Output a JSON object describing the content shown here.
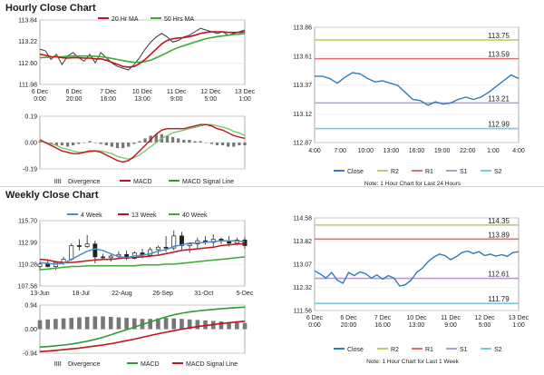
{
  "titles": {
    "hourly": "Hourly Close Chart",
    "weekly": "Weekly Close Chart"
  },
  "colors": {
    "price": "#3a3a3a",
    "ma_red": "#c0141c",
    "ma_green": "#3aaa35",
    "ma_blue": "#4a8fd0",
    "close": "#2e7bbf",
    "r2": "#b4d26e",
    "r1": "#e07070",
    "s1": "#b79bd0",
    "s2": "#7ec8e0",
    "divergence": "#777777",
    "macd_green": "#2e9a3a",
    "signal_green": "#7cc674"
  },
  "chart_data": [
    {
      "id": "hourly_price",
      "type": "line",
      "ylim": [
        111.98,
        113.84
      ],
      "yticks": [
        "113.84",
        "113.22",
        "112.60",
        "111.98"
      ],
      "xticks": [
        "6 Dec\n0:00",
        "6 Dec\n20:00",
        "7 Dec\n16:00",
        "10 Dec\n13:00",
        "11 Dec\n9:00",
        "12 Dec\n5:00",
        "13 Dec\n1:00"
      ],
      "legend": [
        "20 Hr MA",
        "50 Hrs MA"
      ],
      "series": [
        {
          "name": "Close",
          "values": [
            113.0,
            112.95,
            112.7,
            112.85,
            112.55,
            112.8,
            112.9,
            112.75,
            112.65,
            112.85,
            112.6,
            112.9,
            112.75,
            112.6,
            112.5,
            112.45,
            112.4,
            112.55,
            112.75,
            113.0,
            113.2,
            113.35,
            113.45,
            113.35,
            113.2,
            113.25,
            113.35,
            113.4,
            113.5,
            113.6,
            113.55,
            113.5,
            113.45,
            113.5,
            113.4,
            113.45,
            113.5,
            113.55
          ]
        },
        {
          "name": "20 Hr MA",
          "values": [
            112.85,
            112.82,
            112.78,
            112.78,
            112.75,
            112.74,
            112.75,
            112.75,
            112.74,
            112.74,
            112.72,
            112.72,
            112.68,
            112.62,
            112.56,
            112.5,
            112.48,
            112.5,
            112.58,
            112.7,
            112.85,
            113.0,
            113.15,
            113.25,
            113.3,
            113.32,
            113.33,
            113.36,
            113.4,
            113.45,
            113.48,
            113.5,
            113.5,
            113.5,
            113.48,
            113.48,
            113.48,
            113.5
          ]
        },
        {
          "name": "50 Hrs MA",
          "values": [
            112.75,
            112.76,
            112.77,
            112.78,
            112.78,
            112.79,
            112.8,
            112.8,
            112.8,
            112.8,
            112.79,
            112.78,
            112.76,
            112.73,
            112.7,
            112.67,
            112.64,
            112.62,
            112.62,
            112.64,
            112.68,
            112.75,
            112.82,
            112.9,
            112.98,
            113.05,
            113.1,
            113.15,
            113.2,
            113.25,
            113.3,
            113.33,
            113.36,
            113.38,
            113.4,
            113.42,
            113.43,
            113.45
          ]
        }
      ]
    },
    {
      "id": "hourly_macd",
      "type": "line",
      "ylim": [
        -0.19,
        0.19
      ],
      "yticks": [
        "0.19",
        "0.00",
        "-0.19"
      ],
      "legend": [
        "Divergence",
        "MACD",
        "MACD Signal Line"
      ],
      "series": [
        {
          "name": "Divergence",
          "values": [
            0.01,
            0.0,
            -0.01,
            -0.02,
            -0.02,
            -0.03,
            -0.02,
            -0.01,
            0.0,
            0.01,
            0.0,
            -0.01,
            -0.02,
            -0.03,
            -0.04,
            -0.04,
            -0.03,
            -0.01,
            0.01,
            0.03,
            0.05,
            0.06,
            0.06,
            0.05,
            0.04,
            0.03,
            0.02,
            0.02,
            0.01,
            0.01,
            0.0,
            -0.01,
            -0.02,
            -0.02,
            -0.03,
            -0.03,
            -0.02,
            -0.02
          ]
        },
        {
          "name": "MACD",
          "values": [
            0.02,
            0.0,
            -0.02,
            -0.04,
            -0.06,
            -0.07,
            -0.08,
            -0.08,
            -0.07,
            -0.06,
            -0.06,
            -0.07,
            -0.09,
            -0.11,
            -0.13,
            -0.14,
            -0.13,
            -0.1,
            -0.06,
            -0.02,
            0.02,
            0.06,
            0.09,
            0.1,
            0.1,
            0.1,
            0.1,
            0.11,
            0.12,
            0.13,
            0.13,
            0.12,
            0.1,
            0.09,
            0.07,
            0.05,
            0.04,
            0.03
          ]
        },
        {
          "name": "MACD Signal Line",
          "values": [
            0.01,
            0.0,
            -0.01,
            -0.02,
            -0.04,
            -0.05,
            -0.06,
            -0.07,
            -0.07,
            -0.07,
            -0.06,
            -0.06,
            -0.07,
            -0.08,
            -0.1,
            -0.11,
            -0.12,
            -0.11,
            -0.09,
            -0.06,
            -0.03,
            0.0,
            0.03,
            0.05,
            0.07,
            0.08,
            0.09,
            0.1,
            0.11,
            0.12,
            0.13,
            0.13,
            0.12,
            0.11,
            0.1,
            0.08,
            0.07,
            0.05
          ]
        }
      ]
    },
    {
      "id": "hourly_pivot",
      "type": "line",
      "ylim": [
        112.87,
        113.86
      ],
      "yticks": [
        "113.86",
        "113.61",
        "113.37",
        "113.12",
        "112.87"
      ],
      "xticks": [
        "4:00",
        "7:00",
        "10:00",
        "13:00",
        "16:00",
        "19:00",
        "22:00",
        "1:00",
        "4:00"
      ],
      "levels": [
        {
          "name": "R2",
          "value": 113.75,
          "label": "113.75"
        },
        {
          "name": "R1",
          "value": 113.59,
          "label": "113.59"
        },
        {
          "name": "S1",
          "value": 113.21,
          "label": "113.21"
        },
        {
          "name": "S2",
          "value": 112.99,
          "label": "112.99"
        }
      ],
      "series": [
        {
          "name": "Close",
          "values": [
            113.44,
            113.44,
            113.42,
            113.38,
            113.43,
            113.47,
            113.46,
            113.42,
            113.39,
            113.4,
            113.38,
            113.36,
            113.3,
            113.24,
            113.23,
            113.19,
            113.22,
            113.2,
            113.21,
            113.24,
            113.26,
            113.24,
            113.26,
            113.3,
            113.35,
            113.4,
            113.45,
            113.42
          ]
        }
      ],
      "legend": [
        "Close",
        "R2",
        "R1",
        "S1",
        "S2"
      ],
      "note": "Note: 1 Hour Chart for Last 24 Hours"
    },
    {
      "id": "weekly_price",
      "type": "line",
      "ylim": [
        107.58,
        115.7
      ],
      "yticks": [
        "115.70",
        "112.99",
        "110.28",
        "107.58"
      ],
      "xticks": [
        "13-Jun",
        "18-Jul",
        "22-Aug",
        "26-Sep",
        "31-Oct",
        "5-Dec"
      ],
      "legend": [
        "4 Week",
        "13 Week",
        "40 Week"
      ],
      "candles": [
        [
          110.0,
          110.6,
          109.5,
          110.3
        ],
        [
          110.3,
          110.8,
          109.9,
          110.0
        ],
        [
          110.0,
          110.7,
          109.6,
          110.5
        ],
        [
          110.5,
          111.2,
          110.2,
          110.9
        ],
        [
          110.9,
          112.9,
          110.7,
          112.6
        ],
        [
          112.6,
          113.4,
          112.0,
          112.5
        ],
        [
          112.5,
          113.9,
          112.3,
          112.8
        ],
        [
          112.8,
          113.2,
          110.4,
          111.2
        ],
        [
          111.2,
          111.6,
          110.8,
          111.1
        ],
        [
          111.1,
          111.5,
          110.6,
          111.3
        ],
        [
          111.3,
          111.9,
          110.9,
          111.5
        ],
        [
          111.5,
          112.0,
          110.8,
          111.0
        ],
        [
          111.0,
          111.9,
          110.9,
          111.7
        ],
        [
          111.7,
          112.2,
          111.0,
          111.4
        ],
        [
          111.4,
          112.4,
          111.2,
          112.1
        ],
        [
          112.1,
          112.6,
          111.5,
          112.4
        ],
        [
          112.4,
          113.8,
          111.8,
          112.3
        ],
        [
          112.3,
          114.5,
          112.0,
          113.8
        ],
        [
          113.8,
          114.3,
          112.1,
          112.6
        ],
        [
          112.6,
          113.0,
          111.7,
          112.8
        ],
        [
          112.8,
          113.6,
          112.3,
          113.2
        ],
        [
          113.2,
          113.8,
          112.7,
          113.0
        ],
        [
          113.0,
          114.0,
          112.5,
          113.4
        ],
        [
          113.4,
          113.6,
          112.8,
          113.2
        ],
        [
          113.2,
          113.8,
          112.5,
          112.9
        ],
        [
          112.9,
          113.6,
          112.6,
          113.3
        ],
        [
          113.3,
          113.7,
          112.2,
          112.6
        ]
      ],
      "series": [
        {
          "name": "4 Week",
          "values": [
            110.5,
            110.4,
            110.3,
            110.4,
            110.9,
            111.4,
            111.9,
            112.2,
            112.0,
            111.6,
            111.2,
            111.1,
            111.3,
            111.4,
            111.6,
            111.9,
            112.1,
            112.5,
            112.7,
            112.9,
            112.9,
            113.0,
            113.1,
            113.2,
            113.2,
            113.2,
            113.1
          ]
        },
        {
          "name": "13 Week",
          "values": [
            110.9,
            110.8,
            110.6,
            110.5,
            110.5,
            110.6,
            110.7,
            110.8,
            110.9,
            110.9,
            111.0,
            111.1,
            111.1,
            111.2,
            111.3,
            111.4,
            111.6,
            111.8,
            112.0,
            112.1,
            112.2,
            112.3,
            112.4,
            112.6,
            112.7,
            112.8,
            112.8
          ]
        },
        {
          "name": "40 Week",
          "values": [
            109.6,
            109.7,
            109.8,
            109.9,
            110.0,
            110.0,
            110.1,
            110.1,
            110.1,
            110.1,
            110.1,
            110.1,
            110.1,
            110.2,
            110.2,
            110.2,
            110.3,
            110.3,
            110.4,
            110.5,
            110.6,
            110.7,
            110.8,
            110.9,
            111.0,
            111.1,
            111.2
          ]
        }
      ]
    },
    {
      "id": "weekly_macd",
      "type": "line",
      "ylim": [
        -0.94,
        0.94
      ],
      "yticks": [
        "0.94",
        "0.00",
        "-0.94"
      ],
      "legend": [
        "Divergence",
        "MACD",
        "MACD Signal Line"
      ],
      "series": [
        {
          "name": "Divergence",
          "values": [
            0.35,
            0.38,
            0.4,
            0.42,
            0.44,
            0.46,
            0.48,
            0.5,
            0.5,
            0.48,
            0.46,
            0.44,
            0.42,
            0.4,
            0.4,
            0.42,
            0.44,
            0.42,
            0.4,
            0.38,
            0.36,
            0.34,
            0.32,
            0.3,
            0.28,
            0.26,
            0.24
          ]
        },
        {
          "name": "MACD",
          "values": [
            -0.7,
            -0.68,
            -0.65,
            -0.62,
            -0.58,
            -0.53,
            -0.47,
            -0.4,
            -0.32,
            -0.22,
            -0.12,
            -0.02,
            0.08,
            0.18,
            0.28,
            0.38,
            0.48,
            0.56,
            0.62,
            0.67,
            0.71,
            0.74,
            0.77,
            0.8,
            0.82,
            0.84,
            0.86
          ]
        },
        {
          "name": "MACD Signal Line",
          "values": [
            -0.88,
            -0.86,
            -0.83,
            -0.8,
            -0.77,
            -0.74,
            -0.7,
            -0.66,
            -0.62,
            -0.57,
            -0.51,
            -0.45,
            -0.39,
            -0.32,
            -0.25,
            -0.18,
            -0.12,
            -0.06,
            0.0,
            0.05,
            0.1,
            0.14,
            0.18,
            0.22,
            0.25,
            0.28,
            0.31
          ]
        }
      ]
    },
    {
      "id": "weekly_pivot",
      "type": "line",
      "ylim": [
        111.56,
        114.58
      ],
      "yticks": [
        "114.58",
        "113.82",
        "113.07",
        "112.32",
        "111.56"
      ],
      "xticks": [
        "6 Dec\n0:00",
        "6 Dec\n20:00",
        "7 Dec\n16:00",
        "10 Dec\n13:00",
        "11 Dec\n9:00",
        "12 Dec\n5:00",
        "13 Dec\n1:00"
      ],
      "levels": [
        {
          "name": "R2",
          "value": 114.35,
          "label": "114.35"
        },
        {
          "name": "R1",
          "value": 113.89,
          "label": "113.89"
        },
        {
          "name": "S1",
          "value": 112.61,
          "label": "112.61"
        },
        {
          "name": "S2",
          "value": 111.79,
          "label": "111.79"
        }
      ],
      "series": [
        {
          "name": "Close",
          "values": [
            112.85,
            112.75,
            112.62,
            112.8,
            112.55,
            112.45,
            112.8,
            112.7,
            112.82,
            112.76,
            112.62,
            112.72,
            112.58,
            112.7,
            112.62,
            112.36,
            112.4,
            112.55,
            112.8,
            112.94,
            113.15,
            113.3,
            113.4,
            113.35,
            113.22,
            113.32,
            113.45,
            113.5,
            113.42,
            113.48,
            113.35,
            113.4,
            113.33,
            113.38,
            113.33,
            113.45,
            113.48
          ]
        }
      ],
      "legend": [
        "Close",
        "R2",
        "R1",
        "S1",
        "S2"
      ],
      "note": "Note: 1 Hour Chart for Last 1 Week"
    }
  ]
}
